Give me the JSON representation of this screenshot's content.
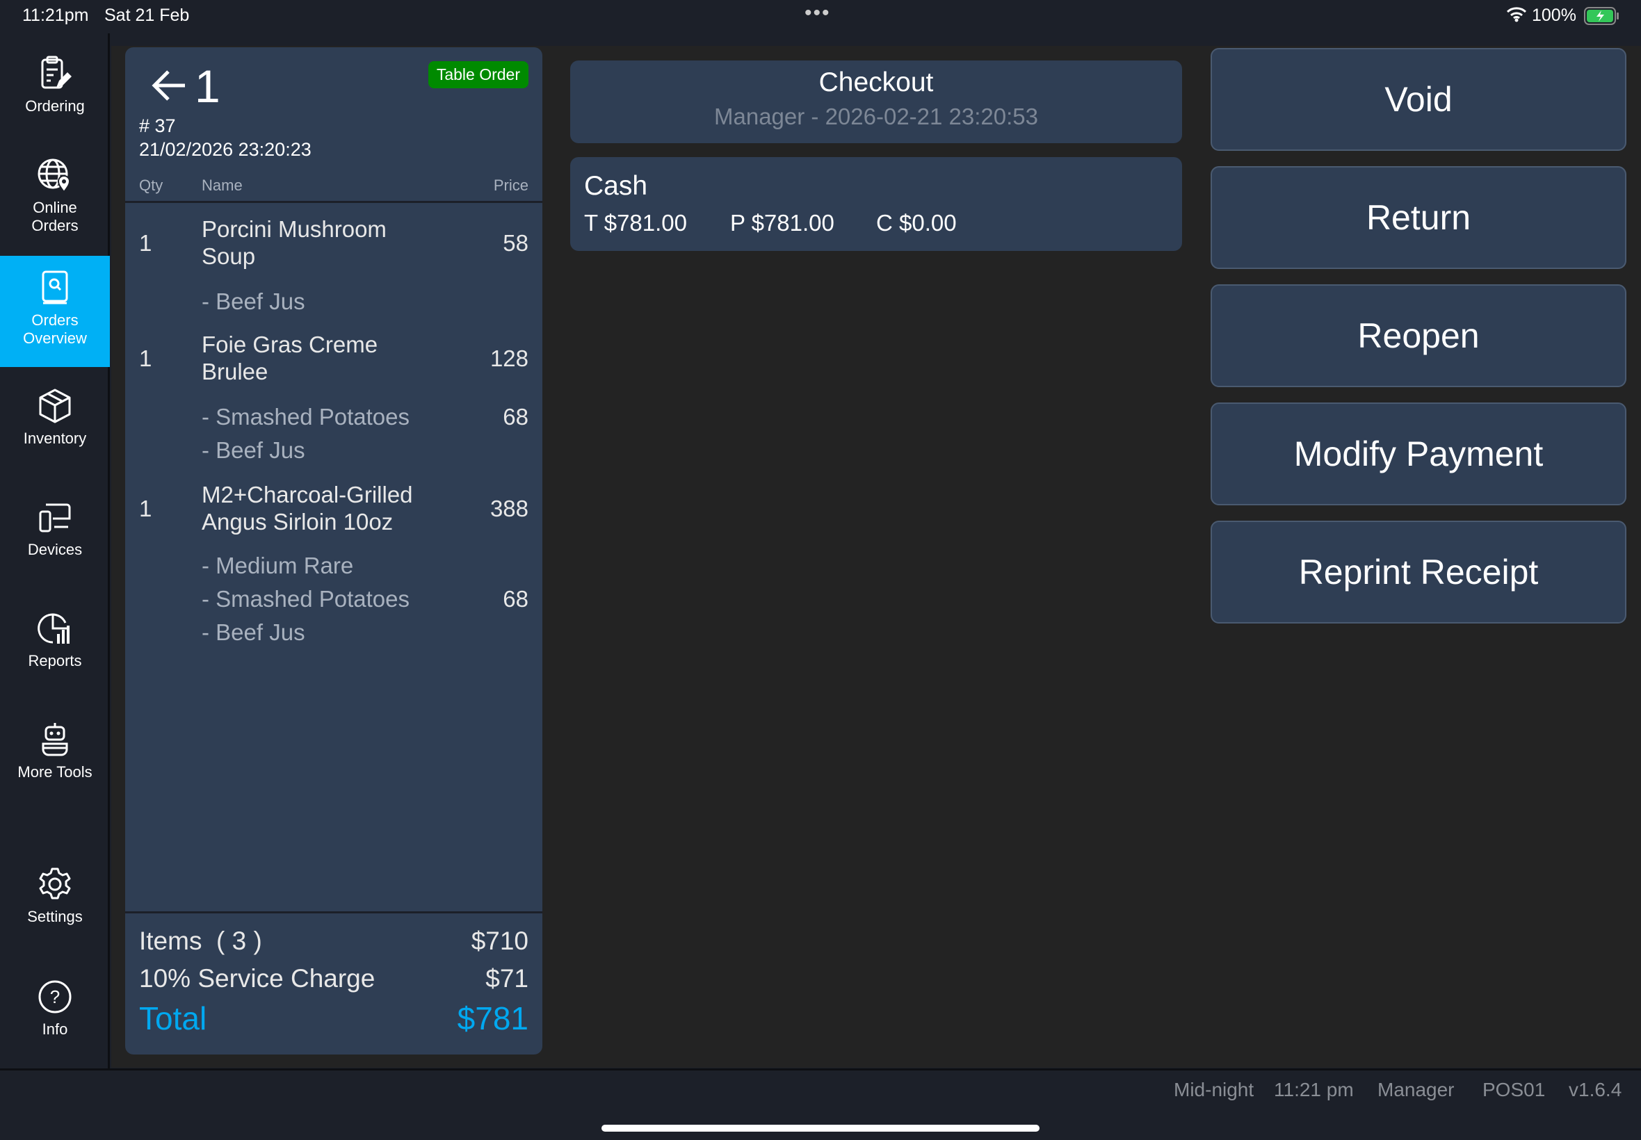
{
  "status_bar": {
    "time": "11:21pm",
    "date": "Sat 21 Feb",
    "battery": "100%"
  },
  "sidebar": {
    "items": [
      {
        "label": "Ordering",
        "icon": "clipboard-edit-icon"
      },
      {
        "label": "Online Orders",
        "icon": "globe-location-icon"
      },
      {
        "label": "Orders Overview",
        "icon": "book-search-icon",
        "active": true
      },
      {
        "label": "Inventory",
        "icon": "box-icon"
      },
      {
        "label": "Devices",
        "icon": "devices-icon"
      },
      {
        "label": "Reports",
        "icon": "chart-icon"
      },
      {
        "label": "More Tools",
        "icon": "robot-icon"
      },
      {
        "label": "Settings",
        "icon": "gear-icon"
      },
      {
        "label": "Info",
        "icon": "help-icon"
      }
    ]
  },
  "order": {
    "table": "1",
    "badge": "Table Order",
    "badge_color": "#008a00",
    "number": "# 37",
    "datetime": "21/02/2026 23:20:23",
    "headers": {
      "qty": "Qty",
      "name": "Name",
      "price": "Price"
    },
    "lines": [
      {
        "qty": "1",
        "name": "Porcini Mushroom",
        "name2": "Soup",
        "price": "58"
      },
      {
        "mod": "- Beef Jus",
        "price": ""
      },
      {
        "qty": "1",
        "name": "Foie Gras Creme",
        "name2": "Brulee",
        "price": "128"
      },
      {
        "mod": "- Smashed Potatoes",
        "price": "68"
      },
      {
        "mod": "- Beef Jus",
        "price": ""
      },
      {
        "qty": "1",
        "name": "M2+Charcoal-Grilled",
        "name2": "Angus Sirloin 10oz",
        "price": "388"
      },
      {
        "mod": "- Medium Rare",
        "price": ""
      },
      {
        "mod": "- Smashed Potatoes",
        "price": "68"
      },
      {
        "mod": "- Beef Jus",
        "price": ""
      }
    ],
    "summary": {
      "items_label": "Items  ( 3 )",
      "items_value": "$710",
      "service_label": "10% Service Charge",
      "service_value": "$71",
      "total_label": "Total",
      "total_value": "$781",
      "total_color": "#00a8f0"
    }
  },
  "checkout": {
    "title": "Checkout",
    "subtitle": "Manager - 2026-02-21 23:20:53"
  },
  "payment": {
    "method": "Cash",
    "total": "T $781.00",
    "paid": "P $781.00",
    "change": "C $0.00"
  },
  "actions": [
    "Void",
    "Return",
    "Reopen",
    "Modify Payment",
    "Reprint Receipt"
  ],
  "footer": {
    "shift": "Mid-night",
    "time": "11:21 pm",
    "user": "Manager",
    "terminal": "POS01",
    "version": "v1.6.4"
  }
}
